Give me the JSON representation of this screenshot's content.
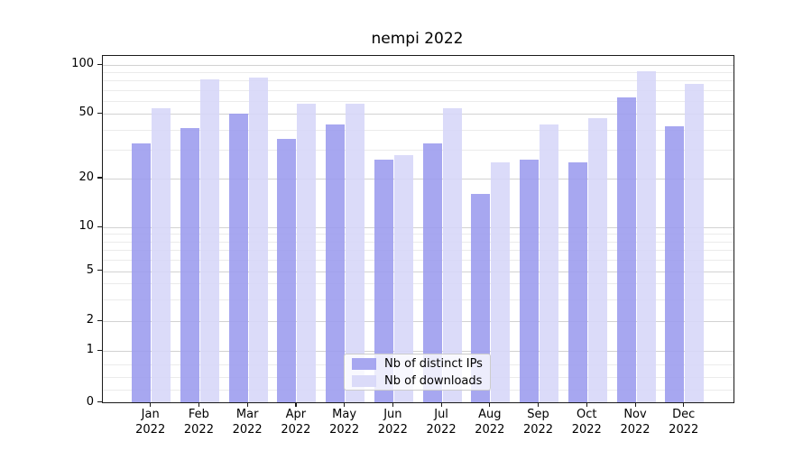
{
  "title": "nempi 2022",
  "legend": {
    "items": [
      {
        "label": "Nb of distinct IPs"
      },
      {
        "label": "Nb of downloads"
      }
    ]
  },
  "chart_data": {
    "type": "bar",
    "title": "nempi 2022",
    "categories": [
      "Jan",
      "Feb",
      "Mar",
      "Apr",
      "May",
      "Jun",
      "Jul",
      "Aug",
      "Sep",
      "Oct",
      "Nov",
      "Dec"
    ],
    "year_label": "2022",
    "series": [
      {
        "name": "Nb of distinct IPs",
        "color": "#9b9bee",
        "values": [
          33,
          41,
          50,
          35,
          43,
          26,
          33,
          16,
          26,
          25,
          63,
          42
        ]
      },
      {
        "name": "Nb of downloads",
        "color": "#d6d6f8",
        "values": [
          54,
          82,
          84,
          58,
          58,
          28,
          54,
          25,
          43,
          47,
          91,
          76
        ]
      }
    ],
    "y_axis": {
      "scale": "symlog",
      "major_ticks": [
        100,
        50,
        20,
        10,
        5,
        2,
        1,
        0
      ],
      "minor_gridlines": [
        90,
        80,
        70,
        60,
        40,
        30,
        9,
        8,
        7,
        6,
        4,
        3,
        0.75,
        0.5,
        0.25
      ],
      "ylim": [
        0,
        115
      ]
    },
    "grid": true,
    "legend_position": "lower center",
    "grid_color_major": "#d2d2d2",
    "grid_color_minor": "#ebebeb"
  }
}
